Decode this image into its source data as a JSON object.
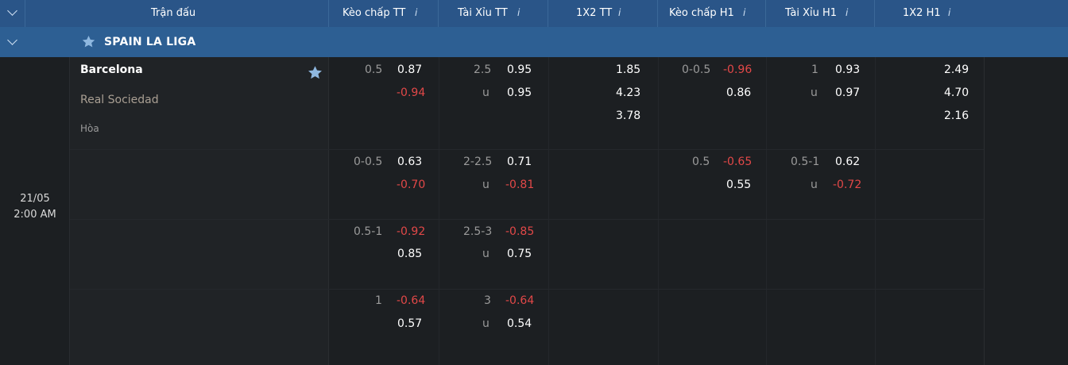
{
  "header": {
    "columns": [
      "Trận đấu",
      "Kèo chấp TT",
      "Tài Xỉu TT",
      "1X2 TT",
      "Kèo chấp H1",
      "Tài Xỉu H1",
      "1X2 H1"
    ],
    "info": "i"
  },
  "league": {
    "name": "SPAIN LA LIGA"
  },
  "match": {
    "date": "21/05",
    "time": "2:00 AM",
    "home": "Barcelona",
    "away": "Real Sociedad",
    "draw": "Hòa"
  },
  "odds": {
    "row1": {
      "hc_line": "0.5",
      "hc_home": "0.87",
      "hc_away": "-0.94",
      "ou_line": "2.5",
      "ou_over": "0.95",
      "ou_u": "u",
      "ou_under": "0.95",
      "x12_1": "1.85",
      "x12_2": "4.23",
      "x12_3": "3.78",
      "h1_hc_line": "0-0.5",
      "h1_hc_home": "-0.96",
      "h1_hc_away": "0.86",
      "h1_ou_line": "1",
      "h1_ou_over": "0.93",
      "h1_ou_u": "u",
      "h1_ou_under": "0.97",
      "h1_x12_1": "2.49",
      "h1_x12_2": "4.70",
      "h1_x12_3": "2.16"
    },
    "row2": {
      "hc_line": "0-0.5",
      "hc_home": "0.63",
      "hc_away": "-0.70",
      "ou_line": "2-2.5",
      "ou_over": "0.71",
      "ou_u": "u",
      "ou_under": "-0.81",
      "h1_hc_line": "0.5",
      "h1_hc_home": "-0.65",
      "h1_hc_away": "0.55",
      "h1_ou_line": "0.5-1",
      "h1_ou_over": "0.62",
      "h1_ou_u": "u",
      "h1_ou_under": "-0.72"
    },
    "row3": {
      "hc_line": "0.5-1",
      "hc_home": "-0.92",
      "hc_away": "0.85",
      "ou_line": "2.5-3",
      "ou_over": "-0.85",
      "ou_u": "u",
      "ou_under": "0.75"
    },
    "row4": {
      "hc_line": "1",
      "hc_home": "-0.64",
      "hc_away": "0.57",
      "ou_line": "3",
      "ou_over": "-0.64",
      "ou_u": "u",
      "ou_under": "0.54"
    }
  },
  "colors": {
    "header": "#2a5588",
    "league": "#2d5f93",
    "negative": "#e24848",
    "star": "#8fb8e0"
  }
}
